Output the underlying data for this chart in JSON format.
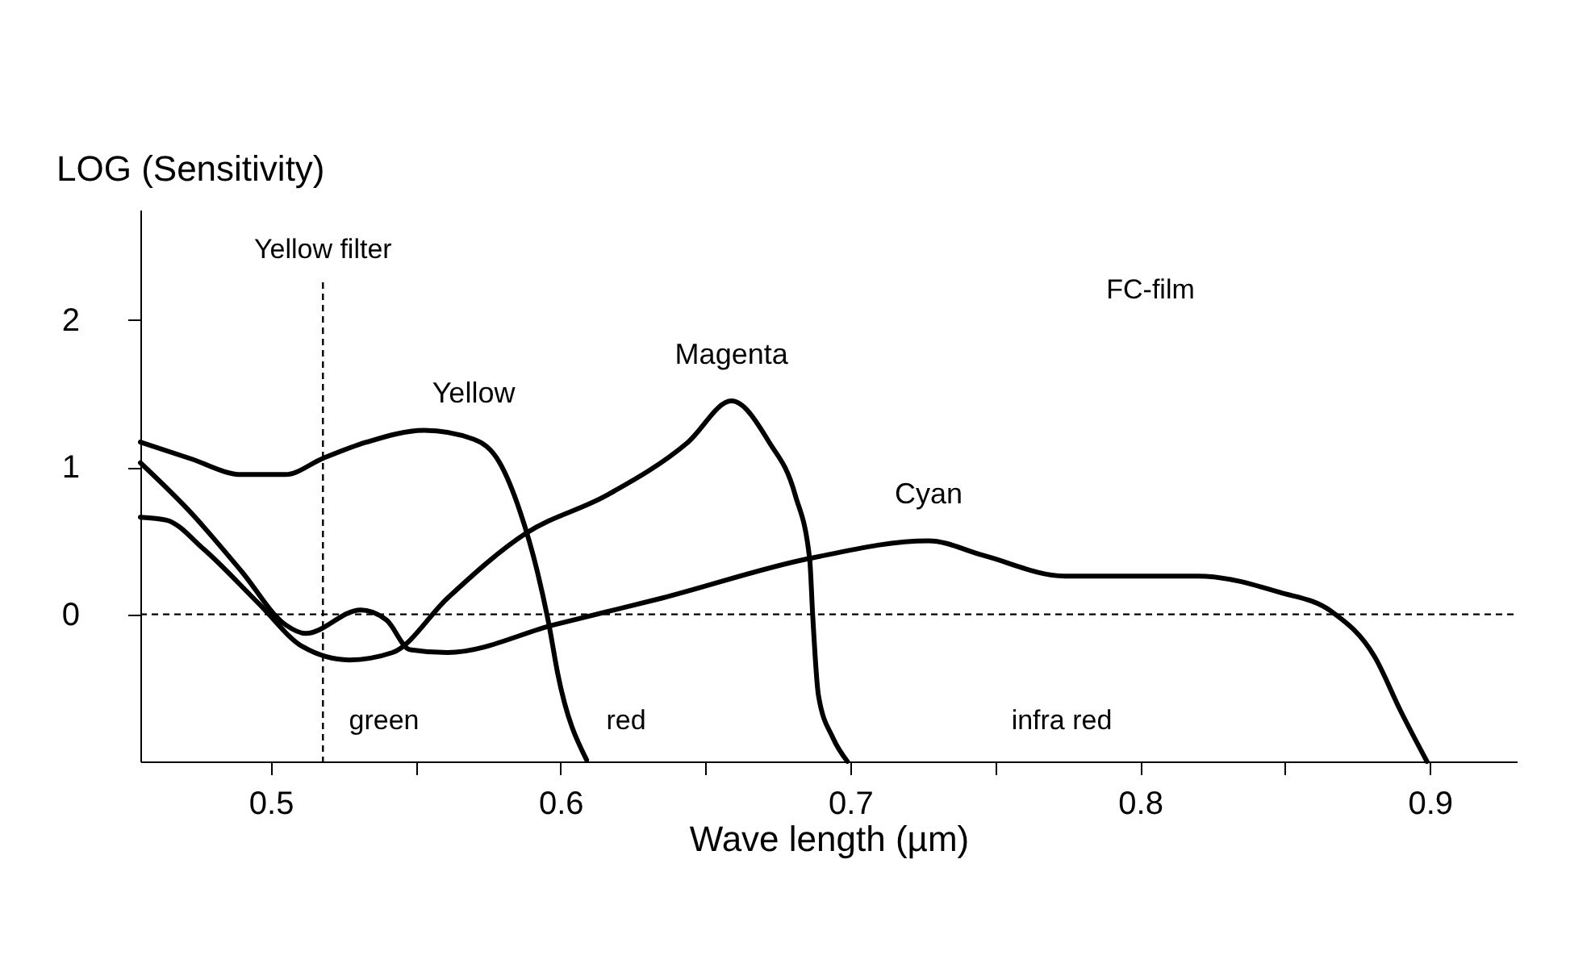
{
  "chart_data": {
    "type": "line",
    "xlabel": "Wave length (µm)",
    "ylabel": "LOG (Sensitivity)",
    "xlim": [
      0.455,
      0.93
    ],
    "ylim": [
      -1.0,
      2.75
    ],
    "xticks": [
      0.5,
      {
        "value": 0.55,
        "label": null
      },
      0.6,
      {
        "value": 0.65,
        "label": null
      },
      0.7,
      {
        "value": 0.75,
        "label": null
      },
      0.8,
      {
        "value": 0.85,
        "label": null
      },
      0.9
    ],
    "yticks": [
      0,
      1,
      2
    ],
    "grid": false,
    "legend": false,
    "marker": "none",
    "line_style": "solid",
    "series": [
      {
        "name": "Yellow",
        "color": "#000000",
        "x": [
          0.455,
          0.472,
          0.49,
          0.505,
          0.518,
          0.533,
          0.553,
          0.57,
          0.579,
          0.586,
          0.592,
          0.596,
          0.599,
          0.609
        ],
        "values": [
          1.17,
          1.06,
          0.95,
          0.95,
          1.06,
          1.17,
          1.25,
          1.19,
          1.03,
          0.7,
          0.29,
          -0.07,
          -0.4,
          -0.99
        ]
      },
      {
        "name": "Magenta",
        "color": "#000000",
        "x": [
          0.455,
          0.464,
          0.477,
          0.496,
          0.511,
          0.527,
          0.542,
          0.561,
          0.588,
          0.616,
          0.644,
          0.659,
          0.672,
          0.681,
          0.686,
          0.687,
          0.689,
          0.694,
          0.699
        ],
        "values": [
          0.66,
          0.64,
          0.44,
          0.07,
          -0.22,
          -0.31,
          -0.26,
          0.11,
          0.55,
          0.81,
          1.17,
          1.45,
          1.17,
          0.81,
          0.37,
          0.0,
          -0.55,
          -0.84,
          -1.0
        ]
      },
      {
        "name": "Cyan",
        "color": "#000000",
        "x": [
          0.455,
          0.472,
          0.49,
          0.505,
          0.512,
          0.531,
          0.54,
          0.548,
          0.561,
          0.598,
          0.635,
          0.686,
          0.727,
          0.746,
          0.774,
          0.82,
          0.848,
          0.866,
          0.881,
          0.89,
          0.899
        ],
        "values": [
          1.03,
          0.7,
          0.29,
          -0.07,
          -0.13,
          0.03,
          -0.04,
          -0.24,
          -0.26,
          -0.07,
          0.11,
          0.38,
          0.5,
          0.4,
          0.26,
          0.26,
          0.15,
          0.02,
          -0.29,
          -0.66,
          -1.0
        ]
      }
    ],
    "ref_lines": [
      {
        "axis": "y",
        "value": 0,
        "line_style": "dashed",
        "color": "#000000"
      },
      {
        "axis": "x",
        "value": 0.518,
        "label": "Yellow filter",
        "line_style": "dashed",
        "color": "#000000"
      }
    ],
    "annotations": [
      "FC-film",
      "green",
      "red",
      "infra red"
    ]
  }
}
